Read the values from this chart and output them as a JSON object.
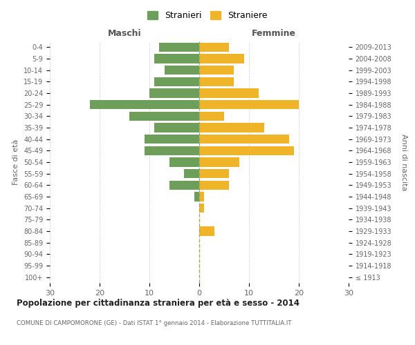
{
  "age_groups": [
    "100+",
    "95-99",
    "90-94",
    "85-89",
    "80-84",
    "75-79",
    "70-74",
    "65-69",
    "60-64",
    "55-59",
    "50-54",
    "45-49",
    "40-44",
    "35-39",
    "30-34",
    "25-29",
    "20-24",
    "15-19",
    "10-14",
    "5-9",
    "0-4"
  ],
  "birth_years": [
    "≤ 1913",
    "1914-1918",
    "1919-1923",
    "1924-1928",
    "1929-1933",
    "1934-1938",
    "1939-1943",
    "1944-1948",
    "1949-1953",
    "1954-1958",
    "1959-1963",
    "1964-1968",
    "1969-1973",
    "1974-1978",
    "1979-1983",
    "1984-1988",
    "1989-1993",
    "1994-1998",
    "1999-2003",
    "2004-2008",
    "2009-2013"
  ],
  "males": [
    0,
    0,
    0,
    0,
    0,
    0,
    0,
    1,
    6,
    3,
    6,
    11,
    11,
    9,
    14,
    22,
    10,
    9,
    7,
    9,
    8
  ],
  "females": [
    0,
    0,
    0,
    0,
    3,
    0,
    1,
    1,
    6,
    6,
    8,
    19,
    18,
    13,
    5,
    20,
    12,
    7,
    7,
    9,
    6
  ],
  "male_color": "#6d9e5a",
  "female_color": "#f0b429",
  "title": "Popolazione per cittadinanza straniera per età e sesso - 2014",
  "subtitle": "COMUNE DI CAMPOMORONE (GE) - Dati ISTAT 1° gennaio 2014 - Elaborazione TUTTITALIA.IT",
  "xlabel_left": "Maschi",
  "xlabel_right": "Femmine",
  "ylabel_left": "Fasce di età",
  "ylabel_right": "Anni di nascita",
  "legend_male": "Stranieri",
  "legend_female": "Straniere",
  "xlim": 30,
  "background_color": "#ffffff",
  "bar_height": 0.8
}
